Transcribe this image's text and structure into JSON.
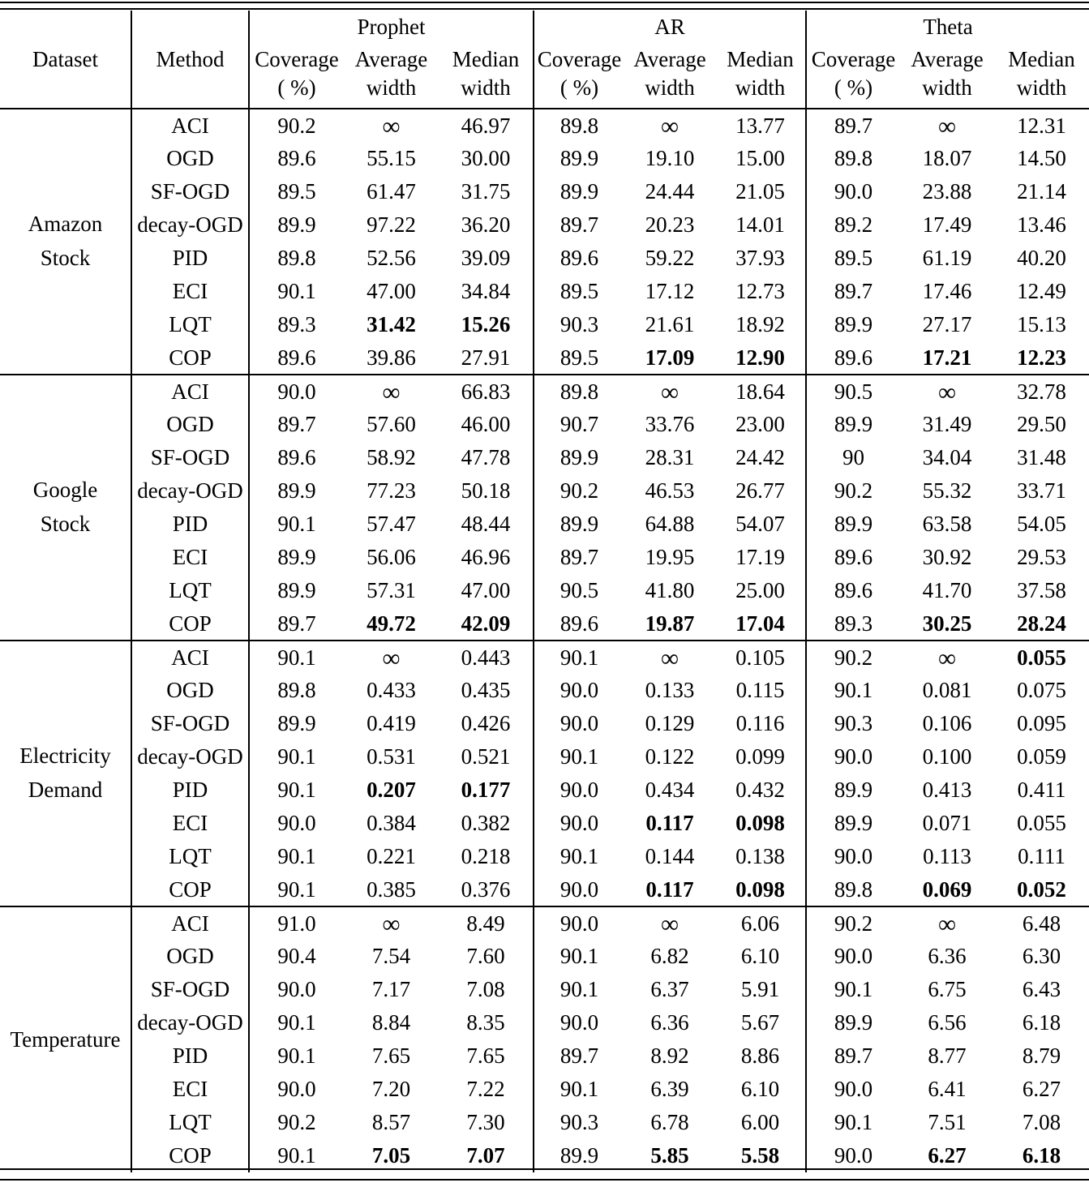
{
  "table": {
    "header": {
      "dataset": "Dataset",
      "method": "Method",
      "coverage": "Coverage",
      "coverage_unit": "( %)",
      "average": "Average",
      "median": "Median",
      "width_word": "width"
    },
    "groups": [
      "Prophet",
      "AR",
      "Theta"
    ],
    "infinity_symbol": "∞",
    "sections": [
      {
        "dataset": "Amazon\nStock",
        "rows": [
          {
            "method": "ACI",
            "values": [
              "90.2",
              "∞",
              "46.97",
              "89.8",
              "∞",
              "13.77",
              "89.7",
              "∞",
              "12.31"
            ],
            "bold": []
          },
          {
            "method": "OGD",
            "values": [
              "89.6",
              "55.15",
              "30.00",
              "89.9",
              "19.10",
              "15.00",
              "89.8",
              "18.07",
              "14.50"
            ],
            "bold": []
          },
          {
            "method": "SF-OGD",
            "values": [
              "89.5",
              "61.47",
              "31.75",
              "89.9",
              "24.44",
              "21.05",
              "90.0",
              "23.88",
              "21.14"
            ],
            "bold": []
          },
          {
            "method": "decay-OGD",
            "values": [
              "89.9",
              "97.22",
              "36.20",
              "89.7",
              "20.23",
              "14.01",
              "89.2",
              "17.49",
              "13.46"
            ],
            "bold": []
          },
          {
            "method": "PID",
            "values": [
              "89.8",
              "52.56",
              "39.09",
              "89.6",
              "59.22",
              "37.93",
              "89.5",
              "61.19",
              "40.20"
            ],
            "bold": []
          },
          {
            "method": "ECI",
            "values": [
              "90.1",
              "47.00",
              "34.84",
              "89.5",
              "17.12",
              "12.73",
              "89.7",
              "17.46",
              "12.49"
            ],
            "bold": []
          },
          {
            "method": "LQT",
            "values": [
              "89.3",
              "31.42",
              "15.26",
              "90.3",
              "21.61",
              "18.92",
              "89.9",
              "27.17",
              "15.13"
            ],
            "bold": [
              1,
              2
            ]
          },
          {
            "method": "COP",
            "values": [
              "89.6",
              "39.86",
              "27.91",
              "89.5",
              "17.09",
              "12.90",
              "89.6",
              "17.21",
              "12.23"
            ],
            "bold": [
              4,
              5,
              7,
              8
            ]
          }
        ]
      },
      {
        "dataset": "Google\nStock",
        "rows": [
          {
            "method": "ACI",
            "values": [
              "90.0",
              "∞",
              "66.83",
              "89.8",
              "∞",
              "18.64",
              "90.5",
              "∞",
              "32.78"
            ],
            "bold": []
          },
          {
            "method": "OGD",
            "values": [
              "89.7",
              "57.60",
              "46.00",
              "90.7",
              "33.76",
              "23.00",
              "89.9",
              "31.49",
              "29.50"
            ],
            "bold": []
          },
          {
            "method": "SF-OGD",
            "values": [
              "89.6",
              "58.92",
              "47.78",
              "89.9",
              "28.31",
              "24.42",
              "90",
              "34.04",
              "31.48"
            ],
            "bold": []
          },
          {
            "method": "decay-OGD",
            "values": [
              "89.9",
              "77.23",
              "50.18",
              "90.2",
              "46.53",
              "26.77",
              "90.2",
              "55.32",
              "33.71"
            ],
            "bold": []
          },
          {
            "method": "PID",
            "values": [
              "90.1",
              "57.47",
              "48.44",
              "89.9",
              "64.88",
              "54.07",
              "89.9",
              "63.58",
              "54.05"
            ],
            "bold": []
          },
          {
            "method": "ECI",
            "values": [
              "89.9",
              "56.06",
              "46.96",
              "89.7",
              "19.95",
              "17.19",
              "89.6",
              "30.92",
              "29.53"
            ],
            "bold": []
          },
          {
            "method": "LQT",
            "values": [
              "89.9",
              "57.31",
              "47.00",
              "90.5",
              "41.80",
              "25.00",
              "89.6",
              "41.70",
              "37.58"
            ],
            "bold": []
          },
          {
            "method": "COP",
            "values": [
              "89.7",
              "49.72",
              "42.09",
              "89.6",
              "19.87",
              "17.04",
              "89.3",
              "30.25",
              "28.24"
            ],
            "bold": [
              1,
              2,
              4,
              5,
              7,
              8
            ]
          }
        ]
      },
      {
        "dataset": "Electricity\nDemand",
        "rows": [
          {
            "method": "ACI",
            "values": [
              "90.1",
              "∞",
              "0.443",
              "90.1",
              "∞",
              "0.105",
              "90.2",
              "∞",
              "0.055"
            ],
            "bold": [
              8
            ]
          },
          {
            "method": "OGD",
            "values": [
              "89.8",
              "0.433",
              "0.435",
              "90.0",
              "0.133",
              "0.115",
              "90.1",
              "0.081",
              "0.075"
            ],
            "bold": []
          },
          {
            "method": "SF-OGD",
            "values": [
              "89.9",
              "0.419",
              "0.426",
              "90.0",
              "0.129",
              "0.116",
              "90.3",
              "0.106",
              "0.095"
            ],
            "bold": []
          },
          {
            "method": "decay-OGD",
            "values": [
              "90.1",
              "0.531",
              "0.521",
              "90.1",
              "0.122",
              "0.099",
              "90.0",
              "0.100",
              "0.059"
            ],
            "bold": []
          },
          {
            "method": "PID",
            "values": [
              "90.1",
              "0.207",
              "0.177",
              "90.0",
              "0.434",
              "0.432",
              "89.9",
              "0.413",
              "0.411"
            ],
            "bold": [
              1,
              2
            ]
          },
          {
            "method": "ECI",
            "values": [
              "90.0",
              "0.384",
              "0.382",
              "90.0",
              "0.117",
              "0.098",
              "89.9",
              "0.071",
              "0.055"
            ],
            "bold": [
              4,
              5
            ]
          },
          {
            "method": "LQT",
            "values": [
              "90.1",
              "0.221",
              "0.218",
              "90.1",
              "0.144",
              "0.138",
              "90.0",
              "0.113",
              "0.111"
            ],
            "bold": []
          },
          {
            "method": "COP",
            "values": [
              "90.1",
              "0.385",
              "0.376",
              "90.0",
              "0.117",
              "0.098",
              "89.8",
              "0.069",
              "0.052"
            ],
            "bold": [
              4,
              5,
              7,
              8
            ]
          }
        ]
      },
      {
        "dataset": "Temperature",
        "rows": [
          {
            "method": "ACI",
            "values": [
              "91.0",
              "∞",
              "8.49",
              "90.0",
              "∞",
              "6.06",
              "90.2",
              "∞",
              "6.48"
            ],
            "bold": []
          },
          {
            "method": "OGD",
            "values": [
              "90.4",
              "7.54",
              "7.60",
              "90.1",
              "6.82",
              "6.10",
              "90.0",
              "6.36",
              "6.30"
            ],
            "bold": []
          },
          {
            "method": "SF-OGD",
            "values": [
              "90.0",
              "7.17",
              "7.08",
              "90.1",
              "6.37",
              "5.91",
              "90.1",
              "6.75",
              "6.43"
            ],
            "bold": []
          },
          {
            "method": "decay-OGD",
            "values": [
              "90.1",
              "8.84",
              "8.35",
              "90.0",
              "6.36",
              "5.67",
              "89.9",
              "6.56",
              "6.18"
            ],
            "bold": []
          },
          {
            "method": "PID",
            "values": [
              "90.1",
              "7.65",
              "7.65",
              "89.7",
              "8.92",
              "8.86",
              "89.7",
              "8.77",
              "8.79"
            ],
            "bold": []
          },
          {
            "method": "ECI",
            "values": [
              "90.0",
              "7.20",
              "7.22",
              "90.1",
              "6.39",
              "6.10",
              "90.0",
              "6.41",
              "6.27"
            ],
            "bold": []
          },
          {
            "method": "LQT",
            "values": [
              "90.2",
              "8.57",
              "7.30",
              "90.3",
              "6.78",
              "6.00",
              "90.1",
              "7.51",
              "7.08"
            ],
            "bold": []
          },
          {
            "method": "COP",
            "values": [
              "90.1",
              "7.05",
              "7.07",
              "89.9",
              "5.85",
              "5.58",
              "90.0",
              "6.27",
              "6.18"
            ],
            "bold": [
              1,
              2,
              4,
              5,
              7,
              8
            ]
          }
        ]
      }
    ]
  }
}
